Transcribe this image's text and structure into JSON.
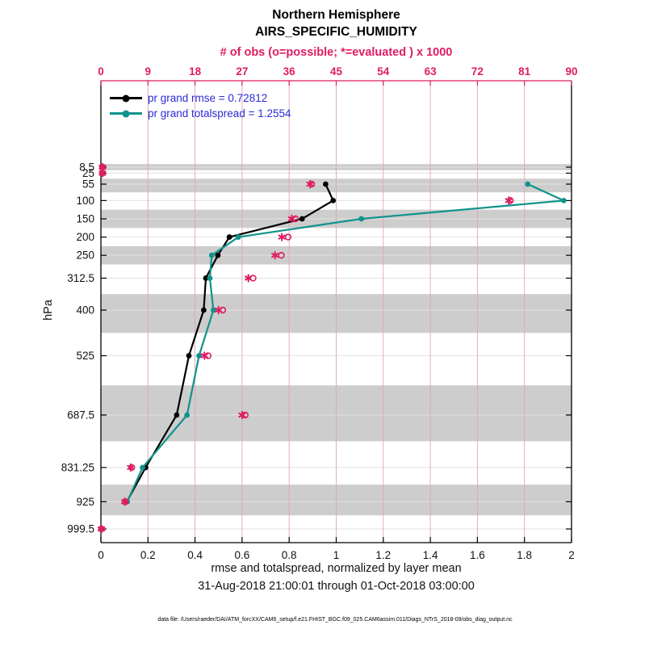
{
  "header": {
    "title_line1": "Northern Hemisphere",
    "title_line2": "AIRS_SPECIFIC_HUMIDITY"
  },
  "legend": {
    "text_color": "#2a2ad6",
    "items": [
      {
        "label": "pr grand rmse = 0.72812",
        "color": "#000000"
      },
      {
        "label": "pr grand totalspread = 1.2554",
        "color": "#10938c"
      }
    ]
  },
  "footer": {
    "text": "data file: /Users/raeder/DAI/ATM_forcXX/CAM6_setup/f.e21.FHIST_BGC.f09_025.CAM6assim.011/Diags_NTrS_2018-09/obs_diag_output.nc"
  },
  "chart_data": {
    "type": "line",
    "title": "Northern Hemisphere",
    "subtitle": "AIRS_SPECIFIC_HUMIDITY",
    "orientation": "vertical-profile",
    "top_axis": {
      "label": "# of obs (o=possible; *=evaluated ) x 1000",
      "ticks": [
        0,
        9,
        18,
        27,
        36,
        45,
        54,
        63,
        72,
        81,
        90
      ],
      "range": [
        0,
        90
      ],
      "color": "#de1c62"
    },
    "x_axis": {
      "label": "rmse and totalspread, normalized by layer mean",
      "ticks": [
        0,
        0.2,
        0.4,
        0.6,
        0.8,
        1,
        1.2,
        1.4,
        1.6,
        1.8,
        2
      ],
      "tick_labels": [
        "0",
        "0.2",
        "0.4",
        "0.6",
        "0.8",
        "1",
        "1.2",
        "1.4",
        "1.6",
        "1.8",
        "2"
      ],
      "range": [
        0,
        2
      ]
    },
    "x_sublabel": "31-Aug-2018 21:00:01 through 01-Oct-2018 03:00:00",
    "y_axis": {
      "label": "hPa",
      "ticks": [
        8.5,
        25,
        55,
        100,
        150,
        200,
        250,
        312.5,
        400,
        525,
        687.5,
        831.25,
        925,
        999.5
      ],
      "tick_labels": [
        "8.5",
        "25",
        "55",
        "100",
        "150",
        "200",
        "250",
        "312.5",
        "400",
        "525",
        "687.5",
        "831.25",
        "925",
        "999.5"
      ],
      "direction": "reverse"
    },
    "series": [
      {
        "name": "pr grand rmse",
        "legend_label": "pr grand rmse = 0.72812",
        "grand_value": 0.72812,
        "color": "#000000",
        "points": [
          {
            "level_hpa": 55,
            "value": 0.955
          },
          {
            "level_hpa": 100,
            "value": 0.987
          },
          {
            "level_hpa": 150,
            "value": 0.855
          },
          {
            "level_hpa": 200,
            "value": 0.546
          },
          {
            "level_hpa": 250,
            "value": 0.497
          },
          {
            "level_hpa": 312.5,
            "value": 0.446
          },
          {
            "level_hpa": 400,
            "value": 0.437
          },
          {
            "level_hpa": 525,
            "value": 0.374
          },
          {
            "level_hpa": 687.5,
            "value": 0.322
          },
          {
            "level_hpa": 831.25,
            "value": 0.19
          },
          {
            "level_hpa": 925,
            "value": 0.11
          }
        ]
      },
      {
        "name": "pr grand totalspread",
        "legend_label": "pr grand totalspread = 1.2554",
        "grand_value": 1.2554,
        "color": "#10938c",
        "points": [
          {
            "level_hpa": 55,
            "value": 1.814
          },
          {
            "level_hpa": 100,
            "value": 1.967
          },
          {
            "level_hpa": 150,
            "value": 1.107
          },
          {
            "level_hpa": 200,
            "value": 0.584
          },
          {
            "level_hpa": 250,
            "value": 0.471
          },
          {
            "level_hpa": 312.5,
            "value": 0.463
          },
          {
            "level_hpa": 400,
            "value": 0.478
          },
          {
            "level_hpa": 525,
            "value": 0.417
          },
          {
            "level_hpa": 687.5,
            "value": 0.366
          },
          {
            "level_hpa": 831.25,
            "value": 0.177
          },
          {
            "level_hpa": 925,
            "value": 0.112
          }
        ]
      }
    ],
    "obs_counts_thousands": [
      {
        "level_hpa": 8.5,
        "possible": 0.3,
        "evaluated": 0.3
      },
      {
        "level_hpa": 25,
        "possible": 0.3,
        "evaluated": 0.3
      },
      {
        "level_hpa": 55,
        "possible": 40.3,
        "evaluated": 40.0
      },
      {
        "level_hpa": 100,
        "possible": 78.3,
        "evaluated": 78.0
      },
      {
        "level_hpa": 150,
        "possible": 37.2,
        "evaluated": 36.5
      },
      {
        "level_hpa": 200,
        "possible": 35.8,
        "evaluated": 34.6
      },
      {
        "level_hpa": 250,
        "possible": 34.5,
        "evaluated": 33.3
      },
      {
        "level_hpa": 312.5,
        "possible": 29.1,
        "evaluated": 28.2
      },
      {
        "level_hpa": 400,
        "possible": 23.3,
        "evaluated": 22.5
      },
      {
        "level_hpa": 525,
        "possible": 20.5,
        "evaluated": 19.8
      },
      {
        "level_hpa": 687.5,
        "possible": 27.6,
        "evaluated": 27.0
      },
      {
        "level_hpa": 831.25,
        "possible": 5.9,
        "evaluated": 5.7
      },
      {
        "level_hpa": 925,
        "possible": 4.6,
        "evaluated": 4.6
      },
      {
        "level_hpa": 999.5,
        "possible": 0.1,
        "evaluated": 0.1
      }
    ],
    "shaded_layer_bands_hpa": [
      [
        0,
        16.75
      ],
      [
        40,
        77.5
      ],
      [
        125,
        175
      ],
      [
        225,
        275
      ],
      [
        356.25,
        462.5
      ],
      [
        606.25,
        759.375
      ],
      [
        878.125,
        962.25
      ]
    ],
    "colors": {
      "obs_marker": "#de1c62",
      "band_fill": "#cdcdcd",
      "h_gridline": "#e2e2e2",
      "v_gridline": "#dba6ba",
      "axis": "#000000"
    },
    "grid": true,
    "legend_position": "top-left-inside"
  }
}
